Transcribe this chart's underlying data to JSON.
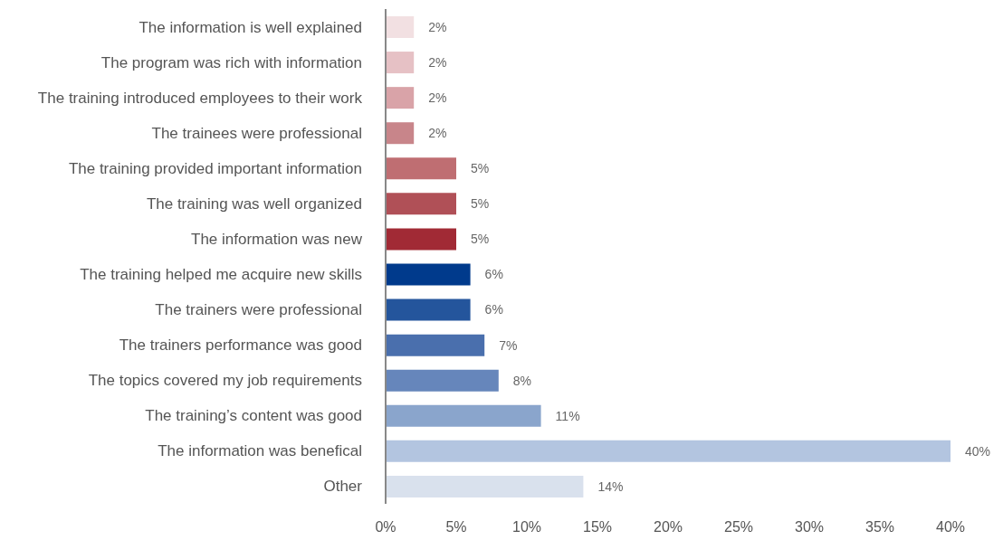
{
  "chart_data": {
    "type": "bar",
    "orientation": "horizontal",
    "categories": [
      "The information is well explained",
      "The program was rich with information",
      "The training introduced employees to their work",
      "The trainees were professional",
      "The training provided important information",
      "The training was well organized",
      "The information was new",
      "The training helped me acquire new skills",
      "The trainers were professional",
      "The trainers performance was good",
      "The topics covered my job requirements",
      "The training’s content was good",
      "The information was benefical",
      "Other"
    ],
    "values": [
      2,
      2,
      2,
      2,
      5,
      5,
      5,
      6,
      6,
      7,
      8,
      11,
      40,
      14
    ],
    "value_labels": [
      "2%",
      "2%",
      "2%",
      "2%",
      "5%",
      "5%",
      "5%",
      "6%",
      "6%",
      "7%",
      "8%",
      "11%",
      "40%",
      "14%"
    ],
    "colors": [
      "#f2e0e2",
      "#e6c1c5",
      "#d9a3a8",
      "#c8858a",
      "#bf6e72",
      "#b05057",
      "#a12a35",
      "#003a8c",
      "#24559c",
      "#4a6fad",
      "#6686bb",
      "#8aa5cc",
      "#b3c5e0",
      "#d9e1ed"
    ],
    "xlim": [
      0,
      40
    ],
    "xticks": [
      {
        "value": 0,
        "label": "0%"
      },
      {
        "value": 5,
        "label": "5%"
      },
      {
        "value": 10,
        "label": "10%"
      },
      {
        "value": 15,
        "label": "15%"
      },
      {
        "value": 20,
        "label": "20%"
      },
      {
        "value": 25,
        "label": "25%"
      },
      {
        "value": 30,
        "label": "30%"
      },
      {
        "value": 35,
        "label": "35%"
      },
      {
        "value": 40,
        "label": "40%"
      }
    ],
    "grid": false
  }
}
